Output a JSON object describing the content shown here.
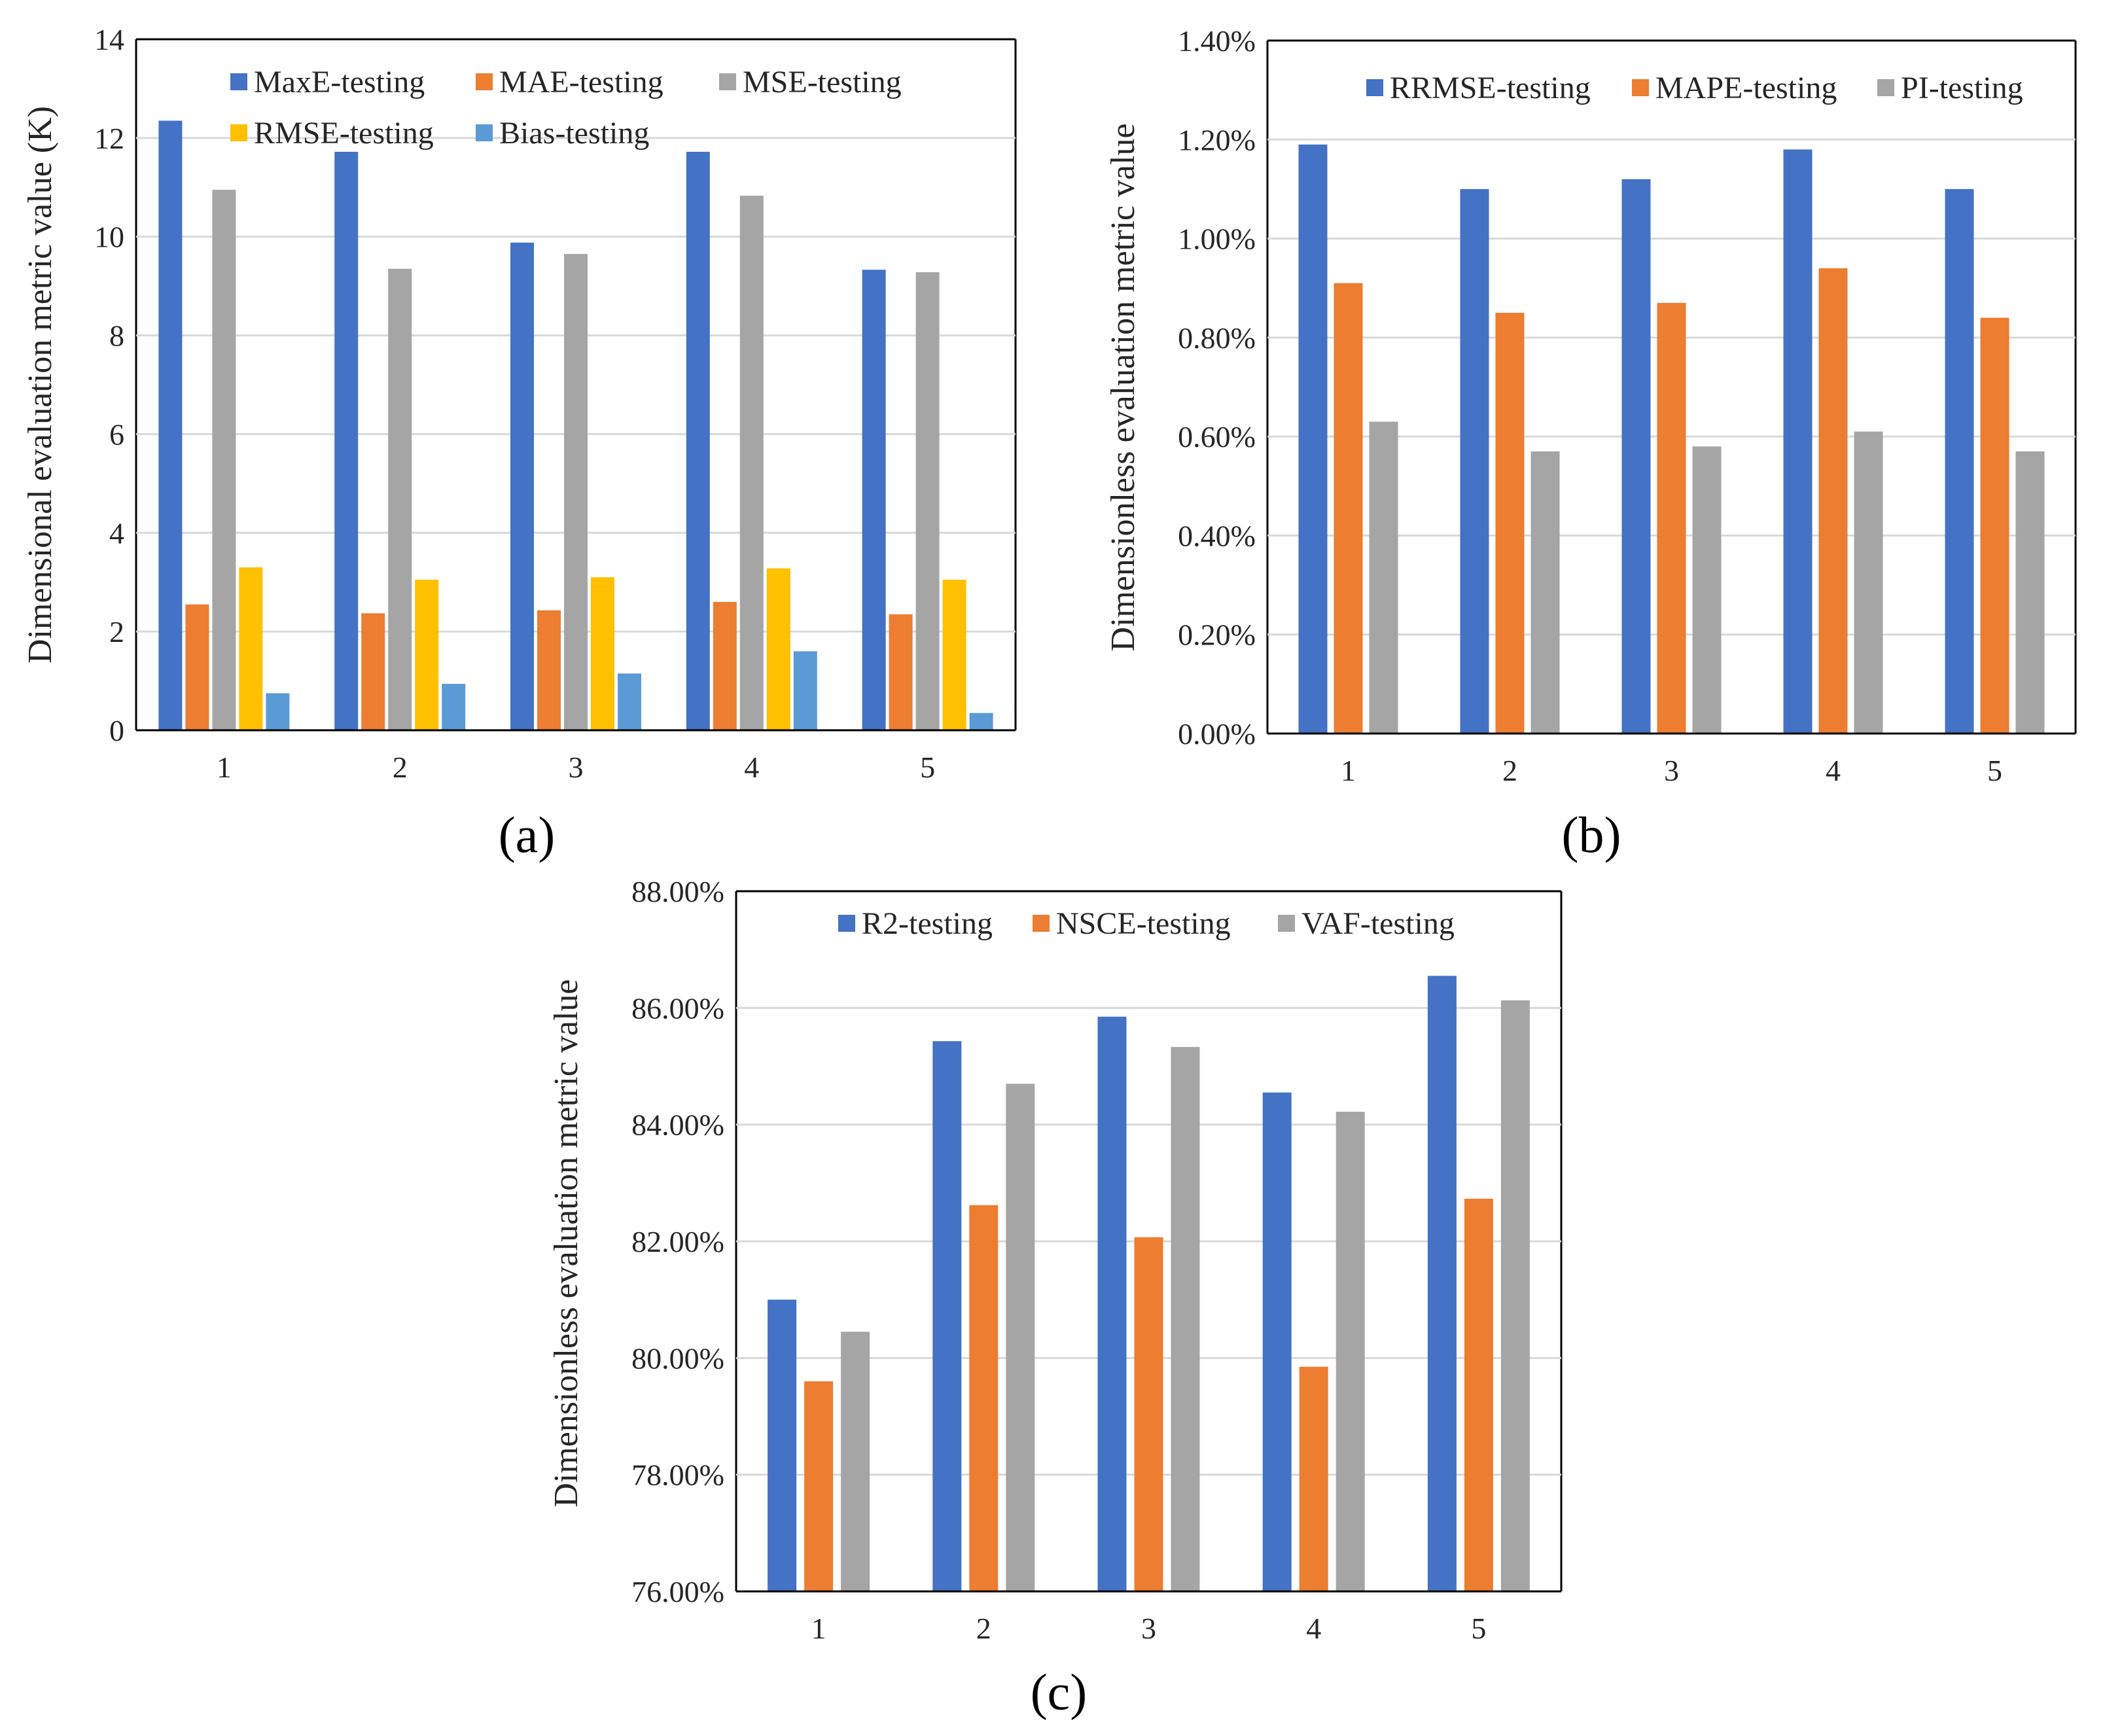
{
  "figure_labels": [
    "(a)",
    "(b)",
    "(c)"
  ],
  "chart_data": [
    {
      "type": "bar",
      "panel_label": "(a)",
      "title": "",
      "xlabel": "",
      "ylabel": "Dimensional evaluation metric value (K)",
      "categories": [
        "1",
        "2",
        "3",
        "4",
        "5"
      ],
      "ylim": [
        0,
        14
      ],
      "yticks": [
        0,
        2,
        4,
        6,
        8,
        10,
        12,
        14
      ],
      "ytick_labels": [
        "0",
        "2",
        "4",
        "6",
        "8",
        "10",
        "12",
        "14"
      ],
      "grid": true,
      "legend": "top-inside",
      "series": [
        {
          "name": "MaxE-testing",
          "color": "#4472C4",
          "values": [
            12.35,
            11.72,
            9.88,
            11.72,
            9.33
          ]
        },
        {
          "name": "MAE-testing",
          "color": "#ED7D31",
          "values": [
            2.55,
            2.37,
            2.43,
            2.6,
            2.35
          ]
        },
        {
          "name": "MSE-testing",
          "color": "#A5A5A5",
          "values": [
            10.95,
            9.35,
            9.65,
            10.83,
            9.28
          ]
        },
        {
          "name": "RMSE-testing",
          "color": "#FFC000",
          "values": [
            3.3,
            3.05,
            3.1,
            3.28,
            3.05
          ]
        },
        {
          "name": "Bias-testing",
          "color": "#5B9BD5",
          "values": [
            0.75,
            0.94,
            1.15,
            1.6,
            0.35
          ]
        }
      ]
    },
    {
      "type": "bar",
      "panel_label": "(b)",
      "title": "",
      "xlabel": "",
      "ylabel": "Dimensionless evaluation metric value",
      "categories": [
        "1",
        "2",
        "3",
        "4",
        "5"
      ],
      "ylim": [
        0,
        1.4
      ],
      "yticks": [
        0,
        0.2,
        0.4,
        0.6,
        0.8,
        1.0,
        1.2,
        1.4
      ],
      "ytick_labels": [
        "0.00%",
        "0.20%",
        "0.40%",
        "0.60%",
        "0.80%",
        "1.00%",
        "1.20%",
        "1.40%"
      ],
      "value_unit": "%",
      "grid": true,
      "legend": "top-inside",
      "series": [
        {
          "name": "RRMSE-testing",
          "color": "#4472C4",
          "values": [
            1.19,
            1.1,
            1.12,
            1.18,
            1.1
          ]
        },
        {
          "name": "MAPE-testing",
          "color": "#ED7D31",
          "values": [
            0.91,
            0.85,
            0.87,
            0.94,
            0.84
          ]
        },
        {
          "name": "PI-testing",
          "color": "#A5A5A5",
          "values": [
            0.63,
            0.57,
            0.58,
            0.61,
            0.57
          ]
        }
      ]
    },
    {
      "type": "bar",
      "panel_label": "(c)",
      "title": "",
      "xlabel": "",
      "ylabel": "Dimensionless evaluation metric value",
      "categories": [
        "1",
        "2",
        "3",
        "4",
        "5"
      ],
      "ylim": [
        76,
        88
      ],
      "yticks": [
        76,
        78,
        80,
        82,
        84,
        86,
        88
      ],
      "ytick_labels": [
        "76.00%",
        "78.00%",
        "80.00%",
        "82.00%",
        "84.00%",
        "86.00%",
        "88.00%"
      ],
      "value_unit": "%",
      "grid": true,
      "legend": "top-inside",
      "series": [
        {
          "name": "R2-testing",
          "color": "#4472C4",
          "values": [
            81.0,
            85.43,
            85.85,
            84.55,
            86.55
          ]
        },
        {
          "name": "NSCE-testing",
          "color": "#ED7D31",
          "values": [
            79.6,
            82.62,
            82.07,
            79.85,
            82.73
          ]
        },
        {
          "name": "VAF-testing",
          "color": "#A5A5A5",
          "values": [
            80.45,
            84.7,
            85.33,
            84.22,
            86.13
          ]
        }
      ]
    }
  ]
}
